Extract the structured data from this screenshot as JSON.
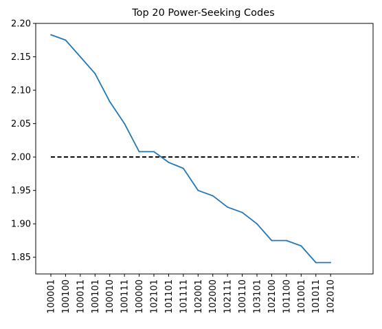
{
  "chart_data": {
    "type": "line",
    "title": "Top 20 Power-Seeking Codes",
    "xlabel": "",
    "ylabel": "",
    "categories": [
      "100001",
      "100100",
      "100011",
      "100101",
      "100010",
      "100111",
      "100000",
      "102101",
      "101101",
      "101111",
      "102001",
      "102000",
      "102111",
      "100110",
      "103101",
      "102100",
      "101100",
      "101001",
      "101011",
      "102010"
    ],
    "series": [
      {
        "values": [
          2.183,
          2.175,
          2.15,
          2.125,
          2.083,
          2.05,
          2.008,
          2.008,
          1.992,
          1.983,
          1.95,
          1.942,
          1.925,
          1.917,
          1.9,
          1.875,
          1.875,
          1.867,
          1.842,
          1.842
        ],
        "color": "#1f77b4"
      }
    ],
    "reference_line": {
      "y": 2.0,
      "color": "#000000",
      "style": "dashed"
    },
    "ylim": [
      1.825,
      2.2
    ],
    "yticks": [
      "1.85",
      "1.90",
      "1.95",
      "2.00",
      "2.05",
      "2.10",
      "2.15",
      "2.20"
    ],
    "grid": false,
    "legend": "none"
  }
}
